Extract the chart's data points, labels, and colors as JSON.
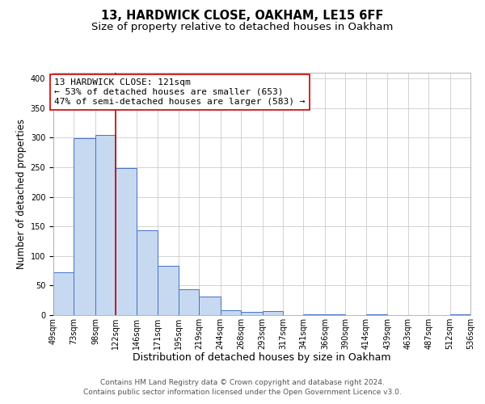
{
  "title": "13, HARDWICK CLOSE, OAKHAM, LE15 6FF",
  "subtitle": "Size of property relative to detached houses in Oakham",
  "xlabel": "Distribution of detached houses by size in Oakham",
  "ylabel": "Number of detached properties",
  "bin_edges": [
    49,
    73,
    98,
    122,
    146,
    171,
    195,
    219,
    244,
    268,
    293,
    317,
    341,
    366,
    390,
    414,
    439,
    463,
    487,
    512,
    536
  ],
  "bin_labels": [
    "49sqm",
    "73sqm",
    "98sqm",
    "122sqm",
    "146sqm",
    "171sqm",
    "195sqm",
    "219sqm",
    "244sqm",
    "268sqm",
    "293sqm",
    "317sqm",
    "341sqm",
    "366sqm",
    "390sqm",
    "414sqm",
    "439sqm",
    "463sqm",
    "487sqm",
    "512sqm",
    "536sqm"
  ],
  "counts": [
    73,
    299,
    305,
    249,
    144,
    83,
    44,
    31,
    8,
    6,
    7,
    0,
    2,
    2,
    0,
    2,
    0,
    0,
    0,
    2
  ],
  "bar_facecolor": "#c6d9f0",
  "bar_edgecolor": "#4472c4",
  "property_line_x": 122,
  "property_line_color": "#cc0000",
  "annotation_line1": "13 HARDWICK CLOSE: 121sqm",
  "annotation_line2": "← 53% of detached houses are smaller (653)",
  "annotation_line3": "47% of semi-detached houses are larger (583) →",
  "ylim": [
    0,
    410
  ],
  "yticks": [
    0,
    50,
    100,
    150,
    200,
    250,
    300,
    350,
    400
  ],
  "grid_color": "#cccccc",
  "background_color": "#ffffff",
  "footer_line1": "Contains HM Land Registry data © Crown copyright and database right 2024.",
  "footer_line2": "Contains public sector information licensed under the Open Government Licence v3.0.",
  "title_fontsize": 10.5,
  "subtitle_fontsize": 9.5,
  "xlabel_fontsize": 9,
  "ylabel_fontsize": 8.5,
  "tick_fontsize": 7,
  "annotation_fontsize": 8,
  "footer_fontsize": 6.5
}
